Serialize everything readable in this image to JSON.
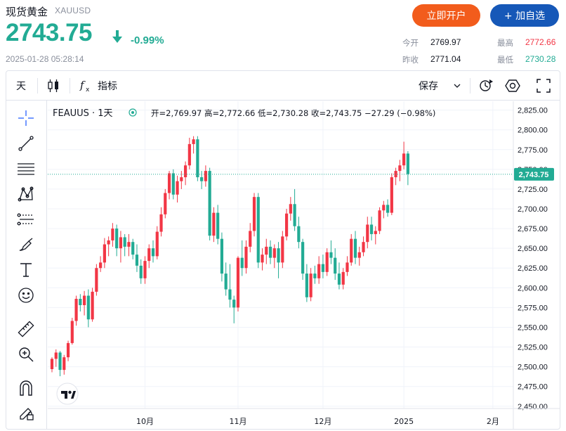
{
  "header": {
    "title": "现货黄金",
    "code": "XAUUSD",
    "price": "2743.75",
    "change": "-0.99%",
    "datetime": "2025-01-28 05:28:14",
    "open_account_label": "立即开户",
    "add_watch_label": "+ 加自选"
  },
  "stats": {
    "open_label": "今开",
    "open_value": "2769.97",
    "prev_close_label": "昨收",
    "prev_close_value": "2771.04",
    "high_label": "最高",
    "high_value": "2772.66",
    "low_label": "最低",
    "low_value": "2730.28"
  },
  "toolbar": {
    "interval": "天",
    "indicators": "指标",
    "save": "保存"
  },
  "legend": {
    "symbol": "FEAUUS · 1天",
    "ohlc": "开=2,769.97 高=2,772.66 低=2,730.28 收=2,743.75 −27.29 (−0.98%)"
  },
  "colors": {
    "up": "#f23645",
    "down": "#22ab94",
    "grid": "#f0f3fa",
    "accent_orange": "#f25c1c",
    "accent_blue": "#1658b8"
  },
  "icons": [
    "crosshair-icon",
    "trendline-icon",
    "fib-icon",
    "pattern-icon",
    "long-position-icon",
    "brush-icon",
    "text-icon",
    "emoji-icon",
    "ruler-icon",
    "zoom-in-icon",
    "magnet-icon",
    "lock-draw-icon",
    "candle-type-icon",
    "fx-icon",
    "replay-icon",
    "settings-icon",
    "fullscreen-icon",
    "tradingview-logo-icon"
  ],
  "chart_data": {
    "type": "candlestick",
    "title": "FEAUUS · 1天",
    "ylim": [
      2440,
      2830
    ],
    "y_ticks": [
      2450,
      2475,
      2500,
      2525,
      2550,
      2575,
      2600,
      2625,
      2650,
      2675,
      2700,
      2725,
      2750,
      2775,
      2800,
      2825
    ],
    "y_tick_labels": [
      "2,450.00",
      "2,475.00",
      "2,500.00",
      "2,525.00",
      "2,550.00",
      "2,575.00",
      "2,600.00",
      "2,625.00",
      "2,650.00",
      "2,675.00",
      "2,700.00",
      "2,725.00",
      "2,750.00",
      "2,775.00",
      "2,800.00",
      "2,825.00"
    ],
    "x_ticks": [
      {
        "label": "10月",
        "index": 23
      },
      {
        "label": "11月",
        "index": 46
      },
      {
        "label": "12月",
        "index": 67
      },
      {
        "label": "2025",
        "index": 87
      },
      {
        "label": "2月",
        "index": 109
      }
    ],
    "last_price_label": "2,743.75",
    "last_price": 2743.75,
    "candles": [
      [
        2497,
        2512,
        2493,
        2510
      ],
      [
        2510,
        2522,
        2500,
        2518
      ],
      [
        2518,
        2520,
        2488,
        2496
      ],
      [
        2496,
        2515,
        2490,
        2512
      ],
      [
        2512,
        2533,
        2507,
        2530
      ],
      [
        2530,
        2562,
        2528,
        2558
      ],
      [
        2558,
        2590,
        2552,
        2586
      ],
      [
        2586,
        2592,
        2570,
        2578
      ],
      [
        2578,
        2596,
        2565,
        2590
      ],
      [
        2590,
        2598,
        2550,
        2560
      ],
      [
        2560,
        2600,
        2557,
        2595
      ],
      [
        2595,
        2630,
        2590,
        2625
      ],
      [
        2625,
        2640,
        2620,
        2632
      ],
      [
        2632,
        2663,
        2625,
        2655
      ],
      [
        2655,
        2665,
        2640,
        2660
      ],
      [
        2660,
        2682,
        2652,
        2675
      ],
      [
        2675,
        2680,
        2640,
        2650
      ],
      [
        2650,
        2672,
        2632,
        2664
      ],
      [
        2664,
        2668,
        2640,
        2652
      ],
      [
        2652,
        2668,
        2640,
        2658
      ],
      [
        2658,
        2662,
        2636,
        2642
      ],
      [
        2642,
        2655,
        2620,
        2628
      ],
      [
        2628,
        2636,
        2605,
        2612
      ],
      [
        2612,
        2640,
        2605,
        2634
      ],
      [
        2634,
        2655,
        2625,
        2650
      ],
      [
        2650,
        2660,
        2632,
        2640
      ],
      [
        2640,
        2678,
        2636,
        2671
      ],
      [
        2671,
        2702,
        2665,
        2693
      ],
      [
        2693,
        2725,
        2688,
        2720
      ],
      [
        2720,
        2748,
        2712,
        2745
      ],
      [
        2745,
        2750,
        2712,
        2718
      ],
      [
        2718,
        2742,
        2708,
        2735
      ],
      [
        2735,
        2748,
        2725,
        2740
      ],
      [
        2740,
        2760,
        2730,
        2755
      ],
      [
        2755,
        2790,
        2750,
        2782
      ],
      [
        2782,
        2792,
        2770,
        2788
      ],
      [
        2788,
        2792,
        2735,
        2740
      ],
      [
        2740,
        2748,
        2725,
        2735
      ],
      [
        2735,
        2755,
        2728,
        2748
      ],
      [
        2748,
        2752,
        2660,
        2666
      ],
      [
        2666,
        2702,
        2658,
        2695
      ],
      [
        2695,
        2705,
        2655,
        2662
      ],
      [
        2662,
        2670,
        2608,
        2618
      ],
      [
        2618,
        2632,
        2590,
        2598
      ],
      [
        2598,
        2630,
        2575,
        2585
      ],
      [
        2585,
        2590,
        2555,
        2575
      ],
      [
        2575,
        2640,
        2570,
        2638
      ],
      [
        2638,
        2660,
        2615,
        2625
      ],
      [
        2625,
        2660,
        2618,
        2652
      ],
      [
        2652,
        2682,
        2645,
        2672
      ],
      [
        2672,
        2720,
        2665,
        2715
      ],
      [
        2715,
        2720,
        2625,
        2632
      ],
      [
        2632,
        2650,
        2622,
        2642
      ],
      [
        2642,
        2662,
        2630,
        2652
      ],
      [
        2652,
        2660,
        2630,
        2638
      ],
      [
        2638,
        2655,
        2625,
        2650
      ],
      [
        2650,
        2658,
        2612,
        2632
      ],
      [
        2632,
        2672,
        2625,
        2665
      ],
      [
        2665,
        2700,
        2660,
        2694
      ],
      [
        2694,
        2715,
        2685,
        2706
      ],
      [
        2706,
        2725,
        2672,
        2678
      ],
      [
        2678,
        2690,
        2650,
        2658
      ],
      [
        2658,
        2662,
        2610,
        2618
      ],
      [
        2618,
        2630,
        2582,
        2588
      ],
      [
        2588,
        2625,
        2583,
        2618
      ],
      [
        2618,
        2628,
        2605,
        2612
      ],
      [
        2612,
        2640,
        2605,
        2630
      ],
      [
        2630,
        2642,
        2612,
        2620
      ],
      [
        2620,
        2650,
        2615,
        2645
      ],
      [
        2645,
        2660,
        2630,
        2638
      ],
      [
        2638,
        2650,
        2610,
        2618
      ],
      [
        2618,
        2632,
        2598,
        2604
      ],
      [
        2604,
        2625,
        2598,
        2620
      ],
      [
        2620,
        2640,
        2615,
        2632
      ],
      [
        2632,
        2668,
        2628,
        2662
      ],
      [
        2662,
        2672,
        2630,
        2638
      ],
      [
        2638,
        2652,
        2628,
        2645
      ],
      [
        2645,
        2665,
        2640,
        2658
      ],
      [
        2658,
        2690,
        2650,
        2680
      ],
      [
        2680,
        2690,
        2660,
        2668
      ],
      [
        2668,
        2678,
        2655,
        2672
      ],
      [
        2672,
        2702,
        2668,
        2698
      ],
      [
        2698,
        2710,
        2688,
        2705
      ],
      [
        2705,
        2712,
        2690,
        2695
      ],
      [
        2695,
        2745,
        2692,
        2740
      ],
      [
        2740,
        2752,
        2730,
        2748
      ],
      [
        2748,
        2762,
        2735,
        2755
      ],
      [
        2755,
        2785,
        2750,
        2770
      ],
      [
        2770,
        2773,
        2730,
        2744
      ]
    ]
  }
}
